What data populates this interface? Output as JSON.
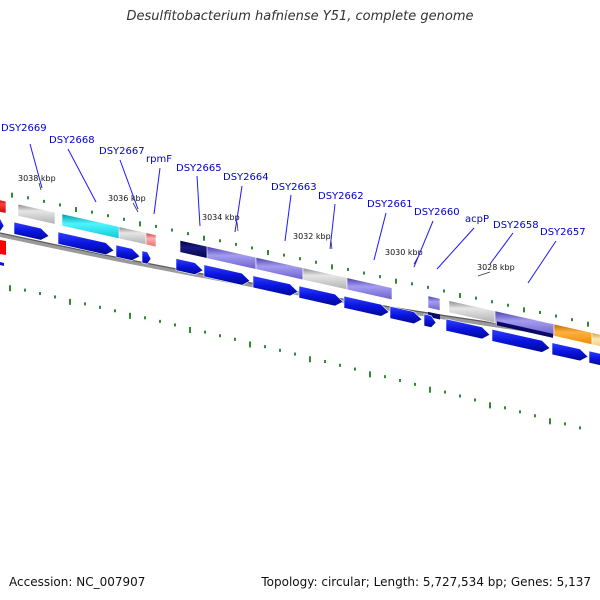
{
  "title": "Desulfitobacterium hafniense Y51, complete genome",
  "footer": {
    "accession": "Accession: NC_007907",
    "summary": "Topology: circular; Length: 5,727,534 bp; Genes: 5,137"
  },
  "kbp_labels": [
    "3038 kbp",
    "3036 kbp",
    "3034 kbp",
    "3032 kbp",
    "3030 kbp",
    "3028 kbp"
  ],
  "gene_labels": [
    "DSY2669",
    "DSY2668",
    "DSY2667",
    "rpmF",
    "DSY2665",
    "DSY2664",
    "DSY2663",
    "DSY2662",
    "DSY2661",
    "DSY2660",
    "acpP",
    "DSY2658",
    "DSY2657"
  ],
  "colors": {
    "backbone": "#7a7a7a",
    "cds_arrow": "#0a14e0",
    "tick": "#2e8b2e",
    "label": "#0000cc",
    "leader": "#1a1aff",
    "feature_gray": "#bdbdbd",
    "feature_cyan": "#22e0e8",
    "feature_navy": "#0a0a66",
    "feature_purple": "#7a72d8",
    "feature_pink": "#f08080",
    "feature_orange": "#ff9900",
    "feature_red": "#ff0000",
    "feature_yellow": "#ffd27a"
  }
}
